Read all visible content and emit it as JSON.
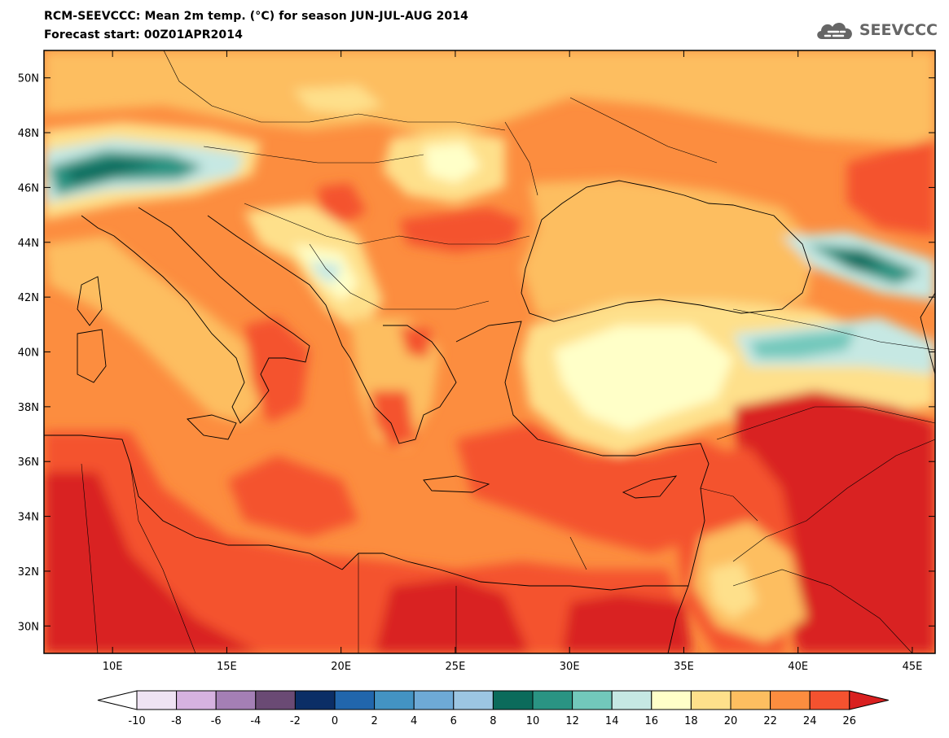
{
  "header": {
    "title": "RCM-SEEVCCC: Mean 2m temp. (°C) for season JUN-JUL-AUG 2014",
    "subtitle": "Forecast start: 00Z01APR2014"
  },
  "logo": {
    "text": "SEEVCCC",
    "icon": "cloud-icon"
  },
  "map": {
    "lat_labels": [
      "50N",
      "48N",
      "46N",
      "44N",
      "42N",
      "40N",
      "38N",
      "36N",
      "34N",
      "32N",
      "30N"
    ],
    "lon_labels": [
      "10E",
      "15E",
      "20E",
      "25E",
      "30E",
      "35E",
      "40E",
      "45E"
    ],
    "lat_range": [
      29,
      51
    ],
    "lon_range": [
      7,
      46
    ]
  },
  "colorbar": {
    "labels": [
      "-10",
      "-8",
      "-6",
      "-4",
      "-2",
      "0",
      "2",
      "4",
      "6",
      "8",
      "10",
      "12",
      "14",
      "16",
      "18",
      "20",
      "22",
      "24",
      "26"
    ],
    "colors": [
      "#ffffff",
      "#efe3f3",
      "#d6b2e0",
      "#a47fb5",
      "#6a4a74",
      "#0b2e66",
      "#2166ac",
      "#4393c3",
      "#6eaad6",
      "#9cc6e2",
      "#0b6b5b",
      "#2a9483",
      "#72c8bb",
      "#c6e8e3",
      "#ffffc8",
      "#fee08b",
      "#fdbe60",
      "#fc8d3f",
      "#f4522f",
      "#d92020"
    ]
  }
}
